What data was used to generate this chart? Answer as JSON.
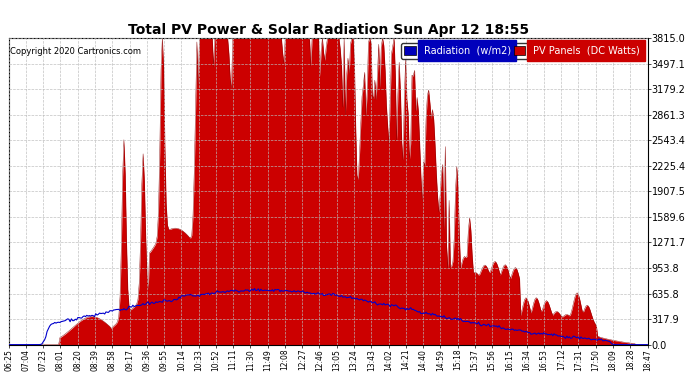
{
  "title": "Total PV Power & Solar Radiation Sun Apr 12 18:55",
  "copyright": "Copyright 2020 Cartronics.com",
  "legend_labels": [
    "Radiation  (w/m2)",
    "PV Panels  (DC Watts)"
  ],
  "legend_bg_colors": [
    "#0000bb",
    "#cc0000"
  ],
  "y_tick_labels": [
    "3815.0",
    "3497.1",
    "3179.2",
    "2861.3",
    "2543.4",
    "2225.4",
    "1907.5",
    "1589.6",
    "1271.7",
    "953.8",
    "635.8",
    "317.9",
    "0.0"
  ],
  "y_max": 3815.0,
  "y_min": 0.0,
  "background_color": "#ffffff",
  "plot_bg_color": "#ffffff",
  "grid_color": "#aaaaaa",
  "fill_color_pv": "#cc0000",
  "fill_color_rad": "#cc0000",
  "line_color_rad": "#0000cc",
  "x_tick_labels": [
    "06:25",
    "07:04",
    "07:23",
    "08:01",
    "08:20",
    "08:39",
    "08:58",
    "09:17",
    "09:36",
    "09:55",
    "10:14",
    "10:33",
    "10:52",
    "11:11",
    "11:30",
    "11:49",
    "12:08",
    "12:27",
    "12:46",
    "13:05",
    "13:24",
    "13:43",
    "14:02",
    "14:21",
    "14:40",
    "14:59",
    "15:18",
    "15:37",
    "15:56",
    "16:15",
    "16:34",
    "16:53",
    "17:12",
    "17:31",
    "17:50",
    "18:09",
    "18:28",
    "18:47"
  ]
}
